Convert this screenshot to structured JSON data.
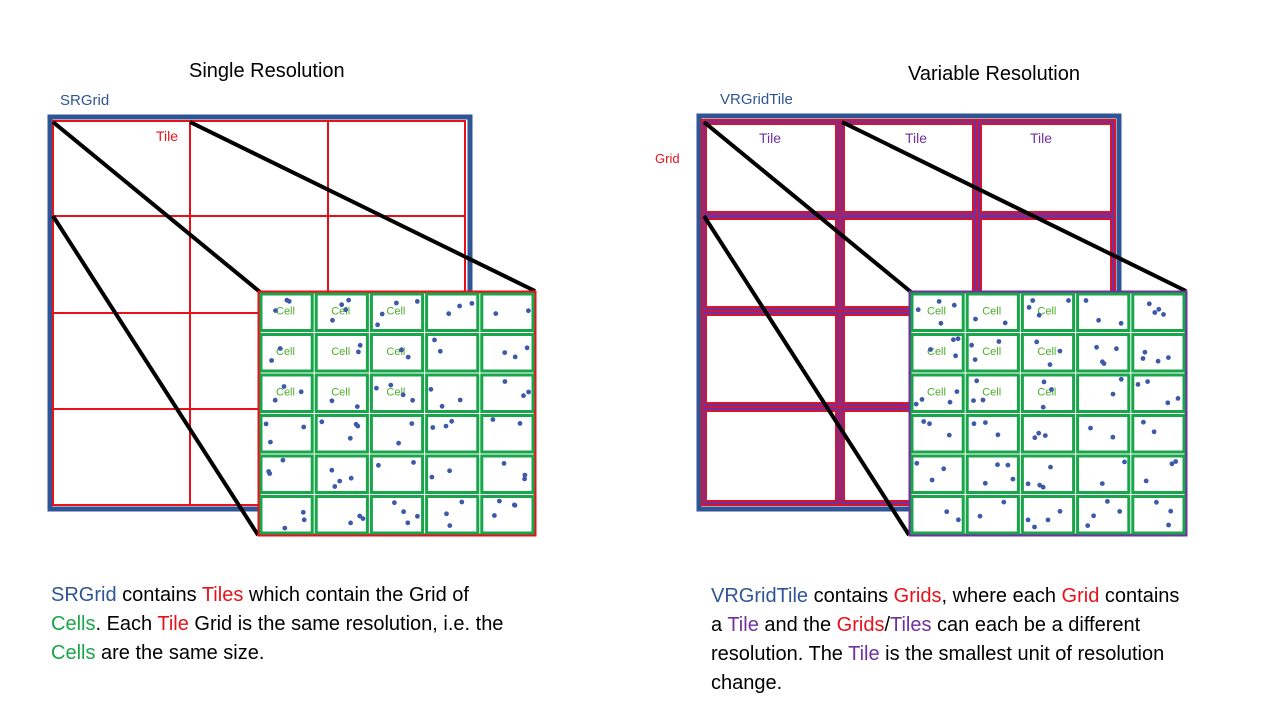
{
  "colors": {
    "navy": "#2f5597",
    "red": "#e8111a",
    "green": "#19a64a",
    "purple": "#7030a0",
    "dot": "#3c5aa8",
    "cell_text": "#4caf2a"
  },
  "left": {
    "title": "Single Resolution",
    "outer_label": "SRGrid",
    "tile_label": "Tile",
    "cell_label": "Cell",
    "caption": [
      {
        "text": "SRGrid",
        "color": "#2f5597"
      },
      {
        "text": " contains ",
        "color": "#000000"
      },
      {
        "text": "Tiles",
        "color": "#e8111a"
      },
      {
        "text": " which contain the Grid of ",
        "color": "#000000"
      },
      {
        "text": "Cells",
        "color": "#19a64a"
      },
      {
        "text": ".  Each ",
        "color": "#000000"
      },
      {
        "text": "Tile",
        "color": "#e8111a"
      },
      {
        "text": " Grid is the same resolution, i.e. the ",
        "color": "#000000"
      },
      {
        "text": "Cells",
        "color": "#19a64a"
      },
      {
        "text": " are the same size.",
        "color": "#000000"
      }
    ]
  },
  "right": {
    "title": "Variable Resolution",
    "outer_label": "VRGridTile",
    "grid_label": "Grid",
    "tile_label": "Tile",
    "cell_label": "Cell",
    "caption": [
      {
        "text": "VRGridTile",
        "color": "#2f5597"
      },
      {
        "text": " contains ",
        "color": "#000000"
      },
      {
        "text": "Grids",
        "color": "#e8111a"
      },
      {
        "text": ", where each ",
        "color": "#000000"
      },
      {
        "text": "Grid",
        "color": "#e8111a"
      },
      {
        "text": " contains a ",
        "color": "#000000"
      },
      {
        "text": "Tile",
        "color": "#7030a0"
      },
      {
        "text": " and the ",
        "color": "#000000"
      },
      {
        "text": "Grids",
        "color": "#e8111a"
      },
      {
        "text": "/",
        "color": "#000000"
      },
      {
        "text": "Tiles",
        "color": "#7030a0"
      },
      {
        "text": " can each be a different resolution.  The ",
        "color": "#000000"
      },
      {
        "text": "Tile",
        "color": "#7030a0"
      },
      {
        "text": " is the smallest unit of resolution change.",
        "color": "#000000"
      }
    ]
  }
}
